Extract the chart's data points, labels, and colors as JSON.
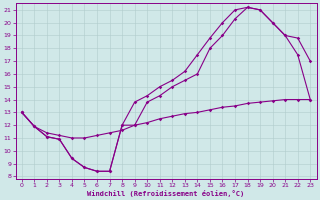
{
  "xlabel": "Windchill (Refroidissement éolien,°C)",
  "bg_color": "#d0e8e8",
  "line_color": "#880088",
  "grid_color": "#b0cccc",
  "xlim": [
    -0.5,
    23.5
  ],
  "ylim": [
    7.8,
    21.5
  ],
  "yticks": [
    8,
    9,
    10,
    11,
    12,
    13,
    14,
    15,
    16,
    17,
    18,
    19,
    20,
    21
  ],
  "xticks": [
    0,
    1,
    2,
    3,
    4,
    5,
    6,
    7,
    8,
    9,
    10,
    11,
    12,
    13,
    14,
    15,
    16,
    17,
    18,
    19,
    20,
    21,
    22,
    23
  ],
  "line1_x": [
    0,
    1,
    2,
    3,
    4,
    5,
    6,
    7,
    8,
    9,
    10,
    11,
    12,
    13,
    14,
    15,
    16,
    17,
    18,
    19,
    20,
    21,
    22,
    23
  ],
  "line1_y": [
    13.0,
    11.9,
    11.1,
    10.9,
    9.4,
    8.7,
    8.4,
    8.4,
    12.0,
    12.0,
    13.8,
    14.3,
    15.0,
    15.5,
    16.0,
    18.0,
    19.0,
    20.3,
    21.2,
    21.0,
    20.0,
    19.0,
    18.8,
    17.0
  ],
  "line2_x": [
    0,
    1,
    2,
    3,
    4,
    5,
    6,
    7,
    8,
    9,
    10,
    11,
    12,
    13,
    14,
    15,
    16,
    17,
    18,
    19,
    20,
    21,
    22,
    23
  ],
  "line2_y": [
    13.0,
    11.9,
    11.1,
    10.9,
    9.4,
    8.7,
    8.4,
    8.4,
    12.0,
    13.8,
    14.3,
    15.0,
    15.5,
    16.2,
    17.5,
    18.8,
    20.0,
    21.0,
    21.2,
    21.0,
    20.0,
    19.0,
    17.5,
    14.0
  ],
  "line3_x": [
    0,
    1,
    2,
    3,
    4,
    5,
    6,
    7,
    8,
    9,
    10,
    11,
    12,
    13,
    14,
    15,
    16,
    17,
    18,
    19,
    20,
    21,
    22,
    23
  ],
  "line3_y": [
    13.0,
    11.9,
    11.4,
    11.2,
    11.0,
    11.0,
    11.2,
    11.4,
    11.6,
    12.0,
    12.2,
    12.5,
    12.7,
    12.9,
    13.0,
    13.2,
    13.4,
    13.5,
    13.7,
    13.8,
    13.9,
    14.0,
    14.0,
    14.0
  ]
}
